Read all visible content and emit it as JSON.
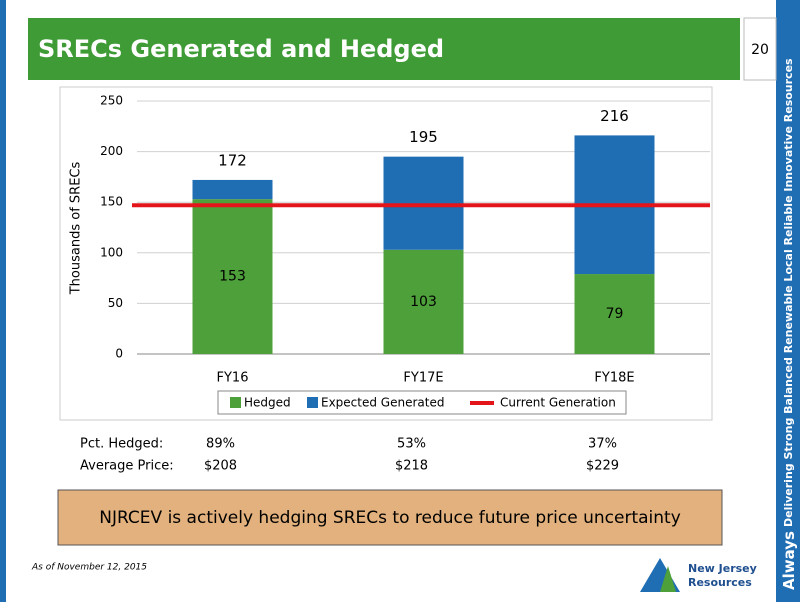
{
  "chart_data": {
    "type": "stacked_bar",
    "y_label": "Thousands of SRECs",
    "categories": [
      "FY16",
      "FY17E",
      "FY18E"
    ],
    "series": [
      {
        "name": "Hedged",
        "color": "#4ea13a",
        "values": [
          153,
          103,
          79
        ]
      },
      {
        "name": "Expected Generated",
        "color": "#1f6db3",
        "values": [
          19,
          92,
          137
        ]
      }
    ],
    "totals": [
      172,
      195,
      216
    ],
    "reference_line": {
      "name": "Current Generation",
      "value": 147,
      "color": "#e3151b"
    },
    "ylim": [
      0,
      250
    ],
    "yticks": [
      0,
      50,
      100,
      150,
      200,
      250
    ],
    "grid": true
  },
  "slide": {
    "title": "SRECs Generated and Hedged",
    "page_number": "20",
    "rows": [
      {
        "label": "Pct. Hedged:",
        "cells": [
          "89%",
          "53%",
          "37%"
        ]
      },
      {
        "label": "Average Price:",
        "cells": [
          "$208",
          "$218",
          "$229"
        ]
      }
    ],
    "callout": "NJRCEV is actively hedging SRECs to reduce future price uncertainty",
    "footnote": "As of November 12, 2015",
    "side_text": {
      "lead": "Always",
      "rest": "Delivering Strong Balanced Renewable Local Reliable Innovative Resources"
    },
    "logo": {
      "line1": "New Jersey",
      "line2": "Resources"
    }
  }
}
